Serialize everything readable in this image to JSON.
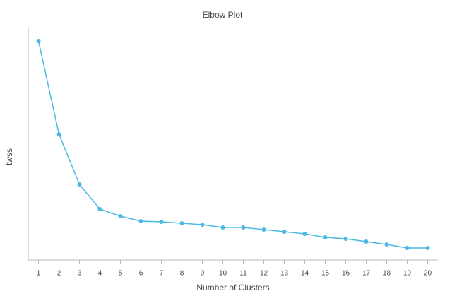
{
  "chart_data": {
    "type": "line",
    "title": "Elbow Plot",
    "x_label": "Number of Clusters",
    "y_label": "twss",
    "x": [
      1,
      2,
      3,
      4,
      5,
      6,
      7,
      8,
      9,
      10,
      11,
      12,
      13,
      14,
      15,
      16,
      17,
      18,
      19,
      20
    ],
    "series": [
      {
        "name": "twss",
        "color": "#4bb9e3",
        "values": [
          310,
          178,
          107,
          72,
          62,
          55,
          54,
          52,
          50,
          46,
          46,
          43,
          40,
          37,
          32,
          30,
          26,
          22,
          17,
          17
        ]
      }
    ],
    "xlim": [
      0.5,
      20.5
    ],
    "xticks": [
      1,
      2,
      3,
      4,
      5,
      6,
      7,
      8,
      9,
      10,
      11,
      12,
      13,
      14,
      15,
      16,
      17,
      18,
      19,
      20
    ],
    "ylim": [
      0,
      330
    ]
  }
}
